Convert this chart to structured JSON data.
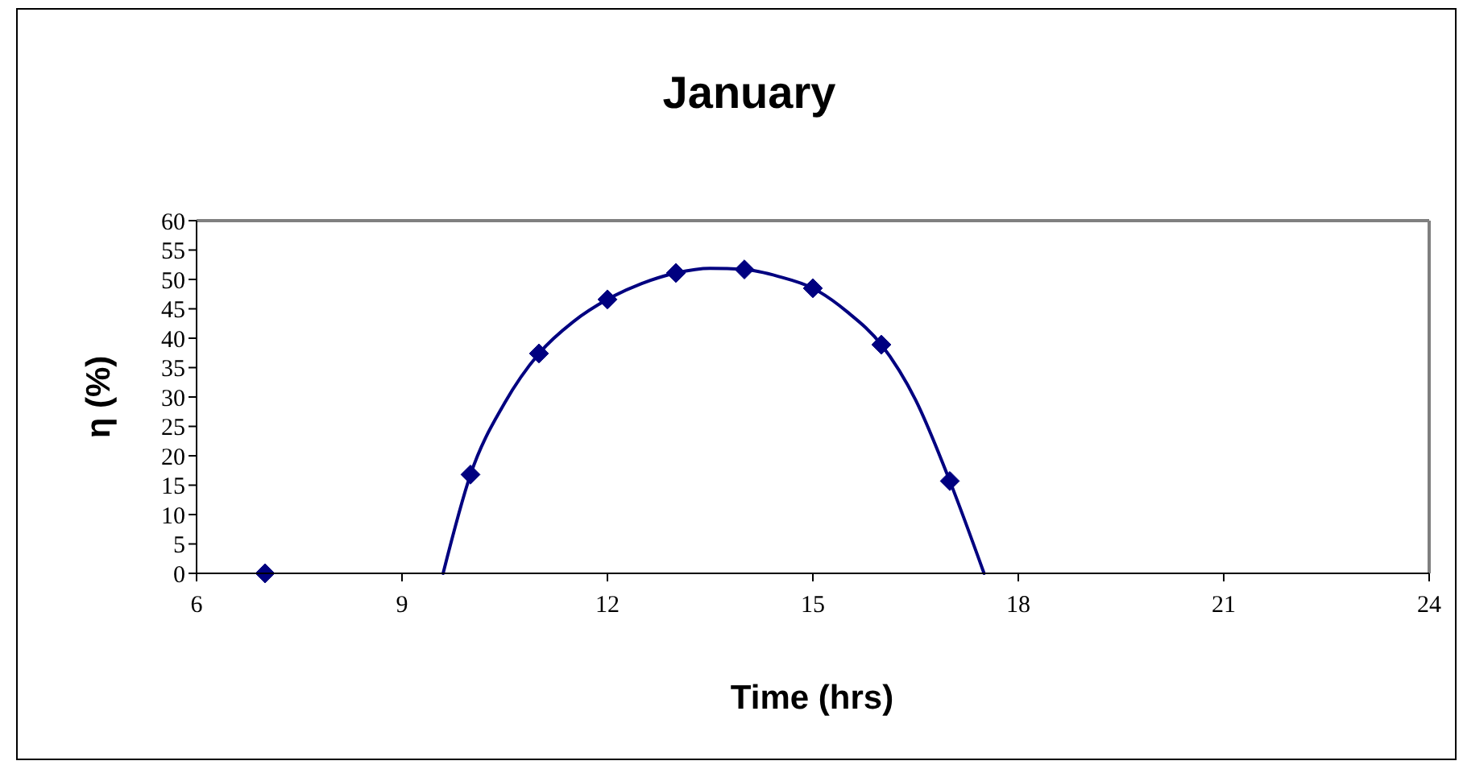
{
  "chart_data": {
    "type": "scatter",
    "title": "January",
    "xlabel": "Time (hrs)",
    "ylabel": "η (%)",
    "xlim": [
      6,
      24
    ],
    "xticks": [
      6,
      9,
      12,
      15,
      18,
      21,
      24
    ],
    "ylim": [
      0,
      60
    ],
    "yticks": [
      0,
      5,
      10,
      15,
      20,
      25,
      30,
      35,
      40,
      45,
      50,
      55,
      60
    ],
    "marker": "diamond",
    "series": [
      {
        "color": "#000080",
        "x": [
          7,
          10,
          11,
          12,
          13,
          14,
          15,
          16,
          17
        ],
        "values": [
          0,
          16.8,
          37.4,
          46.6,
          51.1,
          51.7,
          48.5,
          38.9,
          15.7
        ]
      },
      {
        "type": "line",
        "color": "#000080",
        "marker": "none",
        "x": [
          9.6,
          10,
          10.5,
          11,
          11.5,
          12,
          12.5,
          13,
          13.5,
          14,
          14.5,
          15,
          15.5,
          16,
          16.5,
          17,
          17.5
        ],
        "values": [
          0,
          16.8,
          29,
          37.4,
          42.8,
          46.6,
          49.3,
          51.1,
          51.9,
          51.7,
          50.5,
          48.5,
          44.5,
          38.9,
          29.5,
          15.7,
          0
        ]
      }
    ]
  }
}
